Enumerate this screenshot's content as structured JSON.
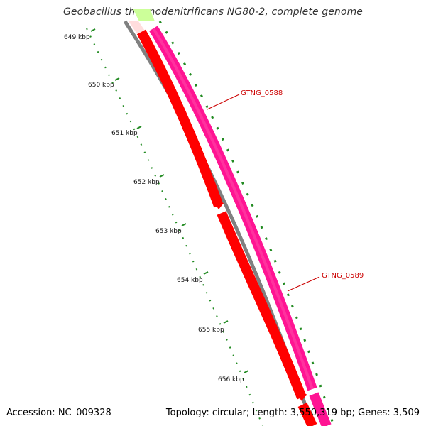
{
  "title": "Geobacillus thermodenitrificans NG80-2, complete genome",
  "footer": {
    "accession": "Accession: NC_009328",
    "summary": "Topology: circular; Length: 3,550,319 bp; Genes: 3,509"
  },
  "scale": {
    "unit": "kbp",
    "labels": [
      "649 kbp",
      "650 kbp",
      "651 kbp",
      "652 kbp",
      "653 kbp",
      "654 kbp",
      "655 kbp",
      "656 kbp"
    ]
  },
  "genes": [
    {
      "name": "GTNG_0588"
    },
    {
      "name": "GTNG_0589"
    }
  ],
  "colors": {
    "backbone": "#808080",
    "cds_red": "#ff0000",
    "cds_pink": "#ff1493",
    "cds_green": "#aaff66",
    "tick": "#228b22",
    "label": "#cc0000"
  }
}
